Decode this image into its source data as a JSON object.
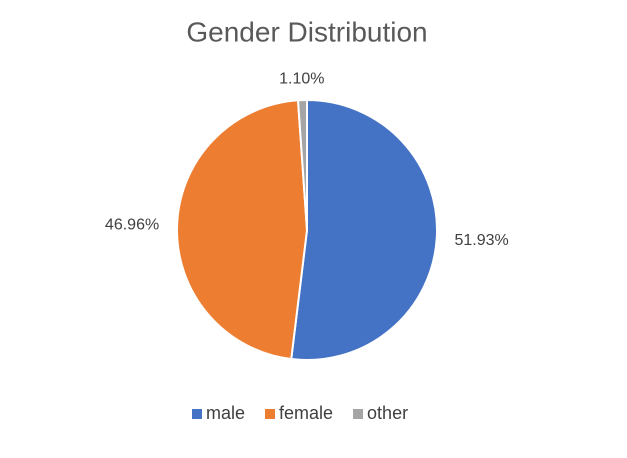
{
  "chart_data": {
    "type": "pie",
    "title": "Gender Distribution",
    "categories": [
      "male",
      "female",
      "other"
    ],
    "values": [
      51.93,
      46.96,
      1.1
    ],
    "value_labels": [
      "51.93%",
      "46.96%",
      "1.10%"
    ],
    "colors": [
      "#4472c4",
      "#ed7d31",
      "#a5a5a5"
    ],
    "legend": "bottom"
  }
}
